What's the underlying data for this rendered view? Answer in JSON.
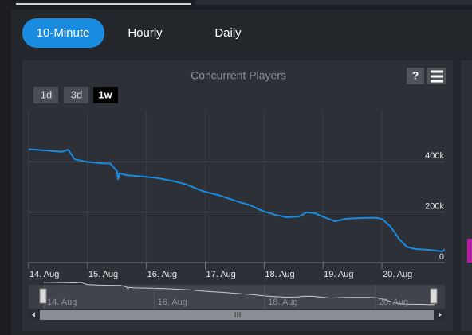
{
  "tabs": [
    "10-Minute",
    "Hourly",
    "Daily"
  ],
  "range_buttons": [
    "1d",
    "3d",
    "1w"
  ],
  "help": "?",
  "chart_data": {
    "type": "line",
    "title": "Concurrent Players",
    "x": [
      14.0,
      14.3,
      14.57,
      14.67,
      14.78,
      14.98,
      15.18,
      15.39,
      15.5,
      15.52,
      15.54,
      15.66,
      15.93,
      16.2,
      16.48,
      16.68,
      16.95,
      17.22,
      17.5,
      17.77,
      17.97,
      18.18,
      18.38,
      18.59,
      18.72,
      18.86,
      18.99,
      19.2,
      19.4,
      19.67,
      19.9,
      20.01,
      20.15,
      20.29,
      20.42,
      20.56,
      20.83,
      21.03,
      21.07
    ],
    "values": [
      450000,
      445000,
      440000,
      448000,
      410000,
      400000,
      395000,
      393000,
      363000,
      330000,
      355000,
      347000,
      342000,
      335000,
      322000,
      310000,
      284000,
      268000,
      246000,
      227000,
      205000,
      190000,
      180000,
      183000,
      199000,
      196000,
      183000,
      164000,
      174000,
      177000,
      178000,
      172000,
      142000,
      95000,
      63000,
      54000,
      50000,
      44000,
      52000
    ],
    "color": "#1a8ce0",
    "xlim": [
      14,
      21.07
    ],
    "xticks": [
      {
        "value": 14,
        "label": "14. Aug"
      },
      {
        "value": 15,
        "label": "15. Aug"
      },
      {
        "value": 16,
        "label": "16. Aug"
      },
      {
        "value": 17,
        "label": "17. Aug"
      },
      {
        "value": 18,
        "label": "18. Aug"
      },
      {
        "value": 19,
        "label": "19. Aug"
      },
      {
        "value": 20,
        "label": "20. Aug"
      }
    ],
    "ylim": [
      0,
      600000
    ],
    "yticks": [
      0,
      {
        "value": 200000,
        "label": "200k"
      },
      {
        "value": 400000,
        "label": "400k"
      }
    ],
    "grid": true,
    "navigator": {
      "xticks": [
        {
          "value": 14,
          "label": "14. Aug"
        },
        {
          "value": 16,
          "label": "16. Aug"
        },
        {
          "value": 18,
          "label": "18. Aug"
        },
        {
          "value": 20,
          "label": "20. Aug"
        }
      ]
    }
  }
}
